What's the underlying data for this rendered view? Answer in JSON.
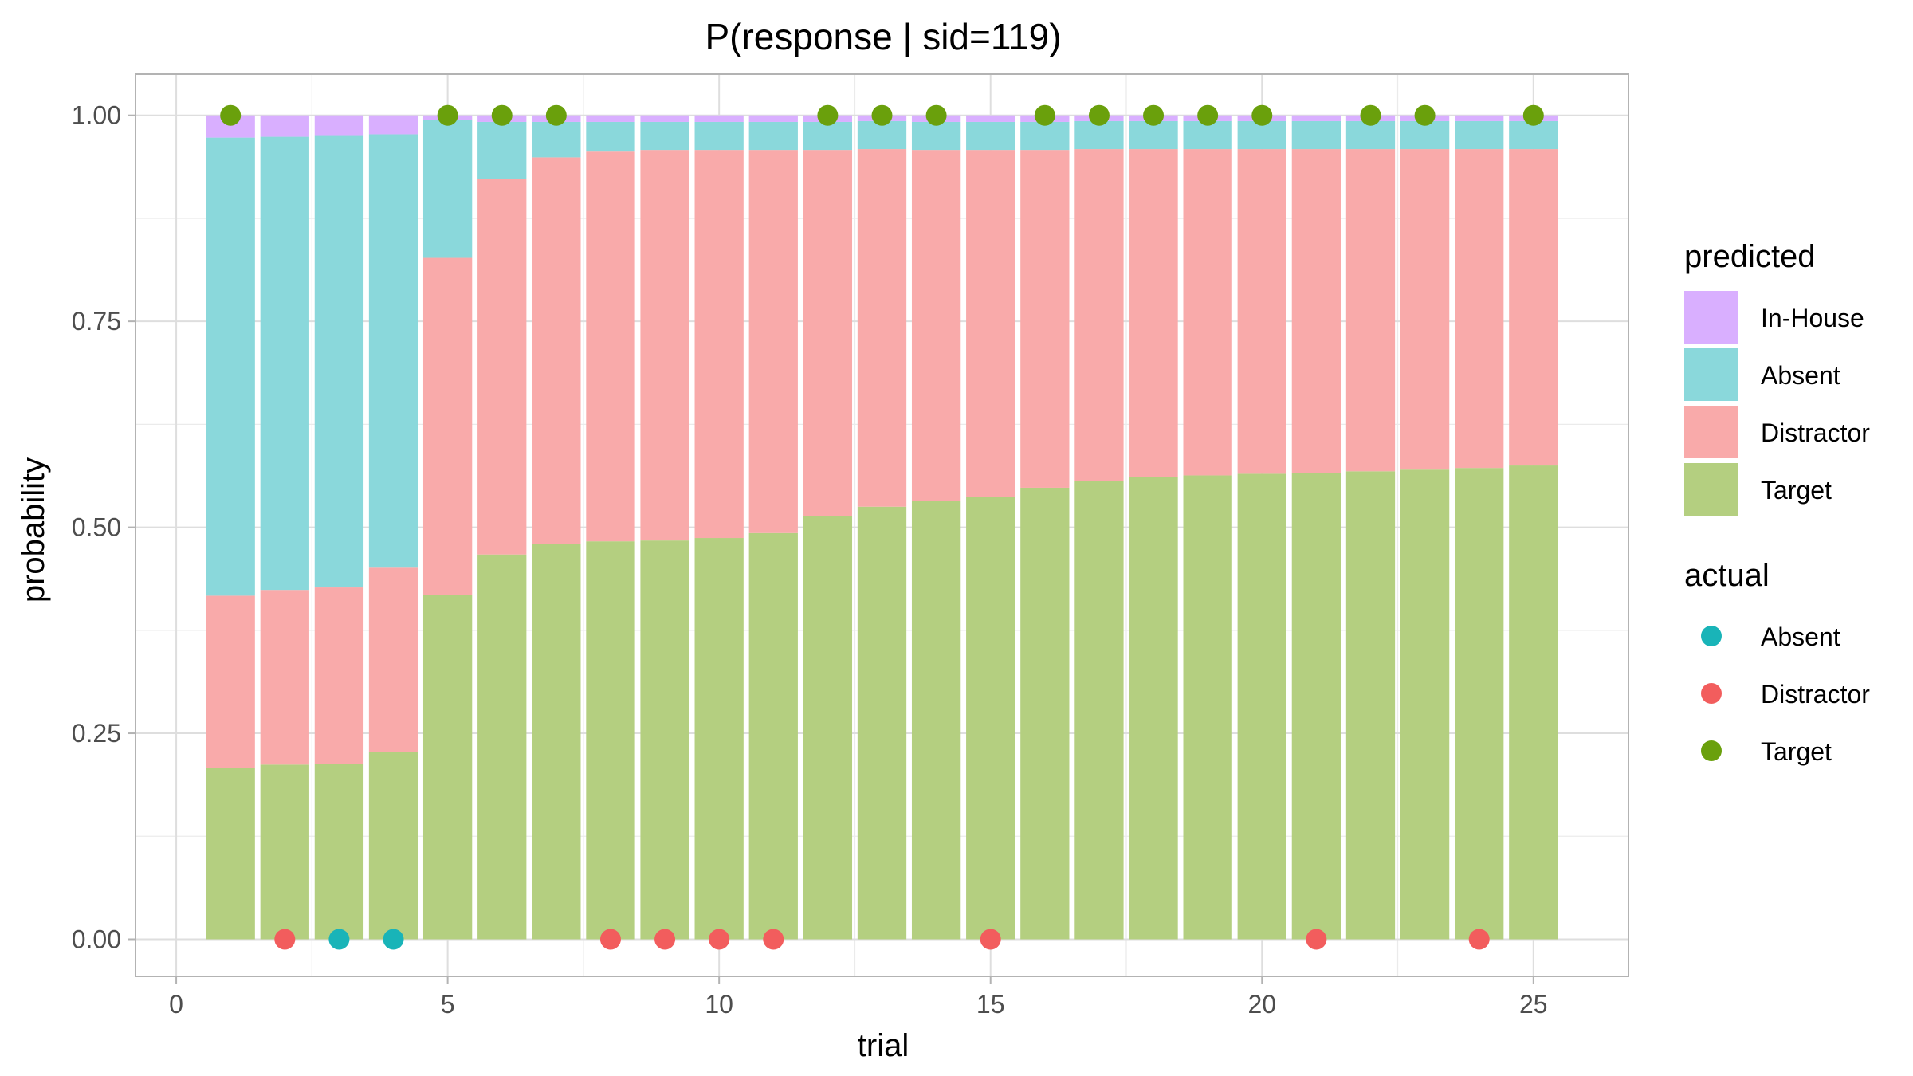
{
  "chart_data": {
    "type": "bar",
    "stacked": true,
    "title": "P(response | sid=119)",
    "xlabel": "trial",
    "ylabel": "probability",
    "xlim": [
      -0.75,
      26.75
    ],
    "ylim": [
      -0.045,
      1.05
    ],
    "x_ticks": [
      0,
      5,
      10,
      15,
      20,
      25
    ],
    "x_tick_labels": [
      "0",
      "5",
      "10",
      "15",
      "20",
      "25"
    ],
    "y_ticks": [
      0,
      0.25,
      0.5,
      0.75,
      1.0
    ],
    "y_tick_labels": [
      "0.00",
      "0.25",
      "0.50",
      "0.75",
      "1.00"
    ],
    "grid": true,
    "x": [
      1,
      2,
      3,
      4,
      5,
      6,
      7,
      8,
      9,
      10,
      11,
      12,
      13,
      14,
      15,
      16,
      17,
      18,
      19,
      20,
      21,
      22,
      23,
      24,
      25
    ],
    "series": [
      {
        "name": "Target",
        "color": "#b4cf80",
        "values": [
          0.208,
          0.212,
          0.213,
          0.227,
          0.418,
          0.467,
          0.48,
          0.483,
          0.484,
          0.487,
          0.493,
          0.514,
          0.525,
          0.532,
          0.537,
          0.548,
          0.556,
          0.561,
          0.563,
          0.565,
          0.566,
          0.568,
          0.57,
          0.572,
          0.575
        ]
      },
      {
        "name": "Distractor",
        "color": "#f9aaaa",
        "values": [
          0.209,
          0.212,
          0.214,
          0.224,
          0.409,
          0.456,
          0.469,
          0.473,
          0.474,
          0.471,
          0.465,
          0.444,
          0.434,
          0.426,
          0.421,
          0.41,
          0.403,
          0.398,
          0.396,
          0.394,
          0.393,
          0.391,
          0.389,
          0.387,
          0.384
        ]
      },
      {
        "name": "Absent",
        "color": "#8ad8db",
        "values": [
          0.556,
          0.55,
          0.548,
          0.526,
          0.167,
          0.069,
          0.043,
          0.036,
          0.034,
          0.034,
          0.034,
          0.034,
          0.034,
          0.034,
          0.034,
          0.034,
          0.034,
          0.034,
          0.034,
          0.034,
          0.034,
          0.034,
          0.034,
          0.034,
          0.034
        ]
      },
      {
        "name": "In-House",
        "color": "#d9afff",
        "values": [
          0.027,
          0.026,
          0.025,
          0.023,
          0.006,
          0.008,
          0.008,
          0.008,
          0.008,
          0.008,
          0.008,
          0.008,
          0.007,
          0.008,
          0.008,
          0.008,
          0.007,
          0.007,
          0.007,
          0.007,
          0.007,
          0.007,
          0.007,
          0.007,
          0.007
        ]
      }
    ],
    "points": {
      "x": [
        1,
        2,
        3,
        4,
        5,
        6,
        7,
        8,
        9,
        10,
        11,
        12,
        13,
        14,
        15,
        16,
        17,
        18,
        19,
        20,
        21,
        22,
        23,
        24,
        25
      ],
      "y": [
        1,
        0,
        0,
        0,
        1,
        1,
        1,
        0,
        0,
        0,
        0,
        1,
        1,
        1,
        0,
        1,
        1,
        1,
        1,
        1,
        0,
        1,
        1,
        0,
        1
      ],
      "category": [
        "Target",
        "Distractor",
        "Absent",
        "Absent",
        "Target",
        "Target",
        "Target",
        "Distractor",
        "Distractor",
        "Distractor",
        "Distractor",
        "Target",
        "Target",
        "Target",
        "Distractor",
        "Target",
        "Target",
        "Target",
        "Target",
        "Target",
        "Distractor",
        "Target",
        "Target",
        "Distractor",
        "Target"
      ]
    },
    "legend": {
      "placement": "right",
      "groups": [
        {
          "title": "predicted",
          "type": "fill",
          "items": [
            {
              "label": "In-House",
              "color": "#d9afff"
            },
            {
              "label": "Absent",
              "color": "#8ad8db"
            },
            {
              "label": "Distractor",
              "color": "#f9aaaa"
            },
            {
              "label": "Target",
              "color": "#b4cf80"
            }
          ]
        },
        {
          "title": "actual",
          "type": "point",
          "items": [
            {
              "label": "Absent",
              "color": "#19b4b8"
            },
            {
              "label": "Distractor",
              "color": "#f25d5d"
            },
            {
              "label": "Target",
              "color": "#6aa00c"
            }
          ]
        }
      ]
    }
  }
}
